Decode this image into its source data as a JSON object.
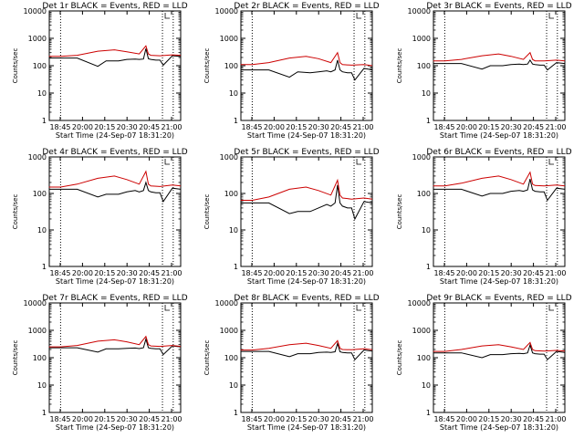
{
  "chart_data": [
    {
      "type": "line",
      "title": "Det 1r BLACK = Events, RED = LLD",
      "ylabel": "Counts/sec",
      "xlabel": "Start Time (24-Sep-07 18:31:20)",
      "yscale": "log",
      "ylim": [
        1,
        10000
      ],
      "y_ticks": [
        "1",
        "10",
        "100",
        "1000",
        "10000"
      ],
      "x_ticks": [
        "18:45",
        "20:00",
        "20:15",
        "20:30",
        "20:45",
        "21:00"
      ],
      "xlim": [
        "18:31:20",
        "21:10"
      ],
      "vlines": [
        "18:45",
        "20:48",
        "21:01"
      ],
      "series": [
        {
          "color": "#000000",
          "x": [
            "18:31",
            "18:45",
            "19:05",
            "19:30",
            "19:40",
            "19:55",
            "20:05",
            "20:15",
            "20:20",
            "20:25",
            "20:28",
            "20:31",
            "20:34",
            "20:40",
            "20:45",
            "20:49",
            "21:00",
            "21:10"
          ],
          "values": [
            190,
            190,
            190,
            95,
            150,
            150,
            170,
            175,
            170,
            175,
            420,
            180,
            170,
            160,
            160,
            105,
            230,
            220
          ]
        },
        {
          "color": "#cc0000",
          "x": [
            "18:31",
            "18:45",
            "19:05",
            "19:30",
            "19:50",
            "20:05",
            "20:20",
            "20:28",
            "20:31",
            "20:34",
            "20:45",
            "21:00",
            "21:10"
          ],
          "values": [
            220,
            220,
            240,
            340,
            380,
            320,
            270,
            530,
            270,
            240,
            230,
            250,
            240
          ]
        }
      ]
    },
    {
      "type": "line",
      "title": "Det 2r BLACK = Events, RED = LLD",
      "ylabel": "Counts/sec",
      "xlabel": "Start Time (24-Sep-07 18:31:20)",
      "yscale": "log",
      "ylim": [
        1,
        10000
      ],
      "y_ticks": [
        "1",
        "10",
        "100",
        "1000",
        "10000"
      ],
      "x_ticks": [
        "18:45",
        "20:00",
        "20:15",
        "20:30",
        "20:45",
        "21:00"
      ],
      "xlim": [
        "18:31:20",
        "21:10"
      ],
      "vlines": [
        "18:45",
        "20:48",
        "21:01"
      ],
      "series": [
        {
          "color": "#000000",
          "x": [
            "18:31",
            "18:45",
            "19:05",
            "19:30",
            "19:40",
            "19:55",
            "20:05",
            "20:15",
            "20:20",
            "20:25",
            "20:28",
            "20:31",
            "20:34",
            "20:40",
            "20:45",
            "20:49",
            "21:00",
            "21:10"
          ],
          "values": [
            70,
            70,
            70,
            38,
            60,
            55,
            60,
            65,
            60,
            70,
            160,
            70,
            60,
            55,
            55,
            30,
            80,
            70
          ]
        },
        {
          "color": "#cc0000",
          "x": [
            "18:31",
            "18:45",
            "19:05",
            "19:30",
            "19:50",
            "20:05",
            "20:20",
            "20:28",
            "20:31",
            "20:34",
            "20:45",
            "21:00",
            "21:10"
          ],
          "values": [
            110,
            110,
            130,
            190,
            220,
            180,
            130,
            300,
            130,
            110,
            105,
            110,
            100
          ]
        }
      ]
    },
    {
      "type": "line",
      "title": "Det 3r BLACK = Events, RED = LLD",
      "ylabel": "Counts/sec",
      "xlabel": "Start Time (24-Sep-07 18:31:20)",
      "yscale": "log",
      "ylim": [
        1,
        10000
      ],
      "y_ticks": [
        "1",
        "10",
        "100",
        "1000",
        "10000"
      ],
      "x_ticks": [
        "18:45",
        "20:00",
        "20:15",
        "20:30",
        "20:45",
        "21:00"
      ],
      "xlim": [
        "18:31:20",
        "21:10"
      ],
      "vlines": [
        "18:45",
        "20:48",
        "21:01"
      ],
      "series": [
        {
          "color": "#000000",
          "x": [
            "18:31",
            "18:45",
            "19:05",
            "19:30",
            "19:40",
            "19:55",
            "20:05",
            "20:15",
            "20:20",
            "20:25",
            "20:28",
            "20:31",
            "20:34",
            "20:40",
            "20:45",
            "20:49",
            "21:00",
            "21:10"
          ],
          "values": [
            120,
            120,
            120,
            75,
            100,
            100,
            110,
            115,
            110,
            115,
            160,
            115,
            110,
            105,
            105,
            70,
            130,
            120
          ]
        },
        {
          "color": "#cc0000",
          "x": [
            "18:31",
            "18:45",
            "19:05",
            "19:30",
            "19:50",
            "20:05",
            "20:20",
            "20:28",
            "20:31",
            "20:34",
            "20:45",
            "21:00",
            "21:10"
          ],
          "values": [
            150,
            150,
            170,
            230,
            270,
            220,
            170,
            300,
            170,
            150,
            150,
            160,
            150
          ]
        }
      ]
    },
    {
      "type": "line",
      "title": "Det 4r BLACK = Events, RED = LLD",
      "ylabel": "Counts/sec",
      "xlabel": "Start Time (24-Sep-07 18:31:20)",
      "yscale": "log",
      "ylim": [
        1,
        1000
      ],
      "y_ticks": [
        "1",
        "10",
        "100",
        "1000"
      ],
      "x_ticks": [
        "18:45",
        "20:00",
        "20:15",
        "20:30",
        "20:45",
        "21:00"
      ],
      "xlim": [
        "18:31:20",
        "21:10"
      ],
      "vlines": [
        "18:45",
        "20:48",
        "21:01"
      ],
      "series": [
        {
          "color": "#000000",
          "x": [
            "18:31",
            "18:45",
            "19:05",
            "19:30",
            "19:40",
            "19:55",
            "20:05",
            "20:15",
            "20:20",
            "20:25",
            "20:28",
            "20:31",
            "20:34",
            "20:40",
            "20:45",
            "20:49",
            "21:00",
            "21:10"
          ],
          "values": [
            130,
            130,
            130,
            80,
            95,
            95,
            110,
            120,
            110,
            120,
            200,
            120,
            110,
            105,
            105,
            60,
            140,
            130
          ]
        },
        {
          "color": "#cc0000",
          "x": [
            "18:31",
            "18:45",
            "19:05",
            "19:30",
            "19:50",
            "20:05",
            "20:20",
            "20:28",
            "20:31",
            "20:34",
            "20:45",
            "21:00",
            "21:10"
          ],
          "values": [
            150,
            150,
            180,
            260,
            300,
            240,
            180,
            400,
            180,
            160,
            155,
            170,
            160
          ]
        }
      ]
    },
    {
      "type": "line",
      "title": "Det 5r BLACK = Events, RED = LLD",
      "ylabel": "Counts/sec",
      "xlabel": "Start Time (24-Sep-07 18:31:20)",
      "yscale": "log",
      "ylim": [
        1,
        1000
      ],
      "y_ticks": [
        "1",
        "10",
        "100",
        "1000"
      ],
      "x_ticks": [
        "18:45",
        "20:00",
        "20:15",
        "20:30",
        "20:45",
        "21:00"
      ],
      "xlim": [
        "18:31:20",
        "21:10"
      ],
      "vlines": [
        "18:45",
        "20:48",
        "21:01"
      ],
      "series": [
        {
          "color": "#000000",
          "x": [
            "18:31",
            "18:45",
            "19:05",
            "19:30",
            "19:40",
            "19:55",
            "20:05",
            "20:15",
            "20:20",
            "20:25",
            "20:28",
            "20:31",
            "20:34",
            "20:40",
            "20:45",
            "20:49",
            "21:00",
            "21:10"
          ],
          "values": [
            55,
            55,
            55,
            28,
            32,
            32,
            40,
            50,
            45,
            55,
            170,
            55,
            45,
            40,
            40,
            20,
            60,
            55
          ]
        },
        {
          "color": "#cc0000",
          "x": [
            "18:31",
            "18:45",
            "19:05",
            "19:30",
            "19:50",
            "20:05",
            "20:20",
            "20:28",
            "20:31",
            "20:34",
            "20:45",
            "21:00",
            "21:10"
          ],
          "values": [
            65,
            65,
            80,
            130,
            150,
            120,
            90,
            230,
            90,
            75,
            70,
            75,
            70
          ]
        }
      ]
    },
    {
      "type": "line",
      "title": "Det 6r BLACK = Events, RED = LLD",
      "ylabel": "Counts/sec",
      "xlabel": "Start Time (24-Sep-07 18:31:20)",
      "yscale": "log",
      "ylim": [
        1,
        1000
      ],
      "y_ticks": [
        "1",
        "10",
        "100",
        "1000"
      ],
      "x_ticks": [
        "18:45",
        "20:00",
        "20:15",
        "20:30",
        "20:45",
        "21:00"
      ],
      "xlim": [
        "18:31:20",
        "21:10"
      ],
      "vlines": [
        "18:45",
        "20:48",
        "21:01"
      ],
      "series": [
        {
          "color": "#000000",
          "x": [
            "18:31",
            "18:45",
            "19:05",
            "19:30",
            "19:40",
            "19:55",
            "20:05",
            "20:15",
            "20:20",
            "20:25",
            "20:28",
            "20:31",
            "20:34",
            "20:40",
            "20:45",
            "20:49",
            "21:00",
            "21:10"
          ],
          "values": [
            130,
            130,
            130,
            85,
            100,
            100,
            115,
            120,
            115,
            125,
            250,
            125,
            115,
            110,
            110,
            65,
            140,
            130
          ]
        },
        {
          "color": "#cc0000",
          "x": [
            "18:31",
            "18:45",
            "19:05",
            "19:30",
            "19:50",
            "20:05",
            "20:20",
            "20:28",
            "20:31",
            "20:34",
            "20:45",
            "21:00",
            "21:10"
          ],
          "values": [
            160,
            160,
            190,
            260,
            300,
            240,
            180,
            380,
            180,
            165,
            160,
            170,
            160
          ]
        }
      ]
    },
    {
      "type": "line",
      "title": "Det 7r BLACK = Events, RED = LLD",
      "ylabel": "Counts/sec",
      "xlabel": "Start Time (24-Sep-07 18:31:20)",
      "yscale": "log",
      "ylim": [
        1,
        10000
      ],
      "y_ticks": [
        "1",
        "10",
        "100",
        "1000",
        "10000"
      ],
      "x_ticks": [
        "18:45",
        "20:00",
        "20:15",
        "20:30",
        "20:45",
        "21:00"
      ],
      "xlim": [
        "18:31:20",
        "21:10"
      ],
      "vlines": [
        "18:45",
        "20:48",
        "21:01"
      ],
      "series": [
        {
          "color": "#000000",
          "x": [
            "18:31",
            "18:45",
            "19:05",
            "19:30",
            "19:40",
            "19:55",
            "20:05",
            "20:15",
            "20:20",
            "20:25",
            "20:28",
            "20:31",
            "20:34",
            "20:40",
            "20:45",
            "20:49",
            "21:00",
            "21:10"
          ],
          "values": [
            230,
            230,
            230,
            160,
            210,
            210,
            220,
            225,
            215,
            230,
            480,
            230,
            220,
            210,
            210,
            130,
            270,
            250
          ]
        },
        {
          "color": "#cc0000",
          "x": [
            "18:31",
            "18:45",
            "19:05",
            "19:30",
            "19:50",
            "20:05",
            "20:20",
            "20:28",
            "20:31",
            "20:34",
            "20:45",
            "21:00",
            "21:10"
          ],
          "values": [
            250,
            250,
            280,
            400,
            450,
            380,
            300,
            600,
            300,
            270,
            260,
            280,
            260
          ]
        }
      ]
    },
    {
      "type": "line",
      "title": "Det 8r BLACK = Events, RED = LLD",
      "ylabel": "Counts/sec",
      "xlabel": "Start Time (24-Sep-07 18:31:20)",
      "yscale": "log",
      "ylim": [
        1,
        10000
      ],
      "y_ticks": [
        "1",
        "10",
        "100",
        "1000",
        "10000"
      ],
      "x_ticks": [
        "18:45",
        "20:00",
        "20:15",
        "20:30",
        "20:45",
        "21:00"
      ],
      "xlim": [
        "18:31:20",
        "21:10"
      ],
      "vlines": [
        "18:45",
        "20:48",
        "21:01"
      ],
      "series": [
        {
          "color": "#000000",
          "x": [
            "18:31",
            "18:45",
            "19:05",
            "19:30",
            "19:40",
            "19:55",
            "20:05",
            "20:15",
            "20:20",
            "20:25",
            "20:28",
            "20:31",
            "20:34",
            "20:40",
            "20:45",
            "20:49",
            "21:00",
            "21:10"
          ],
          "values": [
            170,
            170,
            170,
            110,
            140,
            140,
            155,
            160,
            155,
            165,
            330,
            165,
            155,
            150,
            150,
            85,
            190,
            175
          ]
        },
        {
          "color": "#cc0000",
          "x": [
            "18:31",
            "18:45",
            "19:05",
            "19:30",
            "19:50",
            "20:05",
            "20:20",
            "20:28",
            "20:31",
            "20:34",
            "20:45",
            "21:00",
            "21:10"
          ],
          "values": [
            190,
            190,
            220,
            300,
            340,
            280,
            220,
            420,
            220,
            200,
            195,
            210,
            195
          ]
        }
      ]
    },
    {
      "type": "line",
      "title": "Det 9r BLACK = Events, RED = LLD",
      "ylabel": "Counts/sec",
      "xlabel": "Start Time (24-Sep-07 18:31:20)",
      "yscale": "log",
      "ylim": [
        1,
        10000
      ],
      "y_ticks": [
        "1",
        "10",
        "100",
        "1000",
        "10000"
      ],
      "x_ticks": [
        "18:45",
        "20:00",
        "20:15",
        "20:30",
        "20:45",
        "21:00"
      ],
      "xlim": [
        "18:31:20",
        "21:10"
      ],
      "vlines": [
        "18:45",
        "20:48",
        "21:01"
      ],
      "series": [
        {
          "color": "#000000",
          "x": [
            "18:31",
            "18:45",
            "19:05",
            "19:30",
            "19:40",
            "19:55",
            "20:05",
            "20:15",
            "20:20",
            "20:25",
            "20:28",
            "20:31",
            "20:34",
            "20:40",
            "20:45",
            "20:49",
            "21:00",
            "21:10"
          ],
          "values": [
            150,
            150,
            150,
            100,
            130,
            130,
            140,
            145,
            140,
            150,
            290,
            150,
            140,
            135,
            135,
            85,
            170,
            155
          ]
        },
        {
          "color": "#cc0000",
          "x": [
            "18:31",
            "18:45",
            "19:05",
            "19:30",
            "19:50",
            "20:05",
            "20:20",
            "20:28",
            "20:31",
            "20:34",
            "20:45",
            "21:00",
            "21:10"
          ],
          "values": [
            170,
            170,
            200,
            270,
            300,
            250,
            200,
            360,
            200,
            180,
            175,
            185,
            175
          ]
        }
      ]
    }
  ]
}
